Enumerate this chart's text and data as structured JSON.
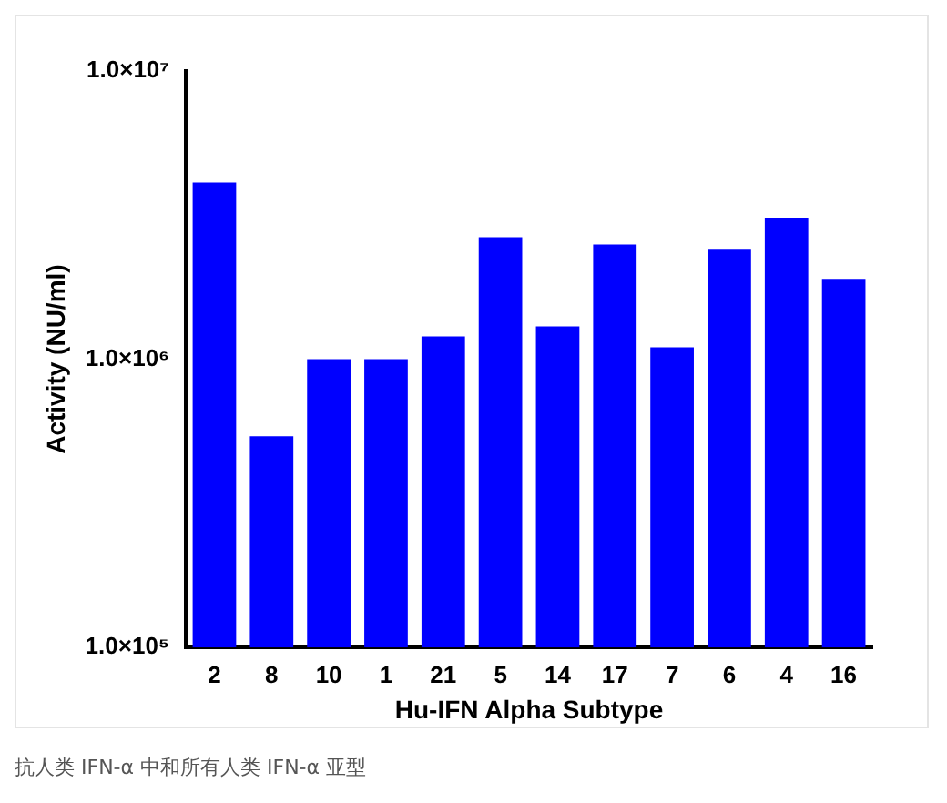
{
  "chart_data": {
    "type": "bar",
    "xlabel": "Hu-IFN Alpha Subtype",
    "ylabel": "Activity (NU/ml)",
    "categories": [
      "2",
      "8",
      "10",
      "1",
      "21",
      "5",
      "14",
      "17",
      "7",
      "6",
      "4",
      "16"
    ],
    "values": [
      4100000,
      540000,
      1000000,
      1000000,
      1200000,
      2650000,
      1300000,
      2500000,
      1100000,
      2400000,
      3100000,
      1900000
    ],
    "color": "#0000ff",
    "log": true,
    "ylim": [
      100000,
      10000000
    ],
    "yticks": [
      {
        "value": 100000,
        "label": "1.0×10⁵"
      },
      {
        "value": 1000000,
        "label": "1.0×10⁶"
      },
      {
        "value": 10000000,
        "label": "1.0×10⁷"
      }
    ],
    "grid": false,
    "legend": false,
    "annotations": [
      "抗人类 IFN-α 中和所有人类 IFN-α 亚型"
    ]
  }
}
